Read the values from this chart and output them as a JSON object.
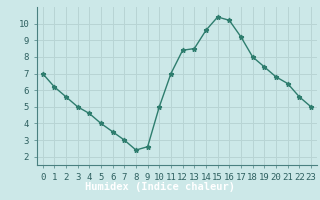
{
  "x": [
    0,
    1,
    2,
    3,
    4,
    5,
    6,
    7,
    8,
    9,
    10,
    11,
    12,
    13,
    14,
    15,
    16,
    17,
    18,
    19,
    20,
    21,
    22,
    23
  ],
  "y": [
    7.0,
    6.2,
    5.6,
    5.0,
    4.6,
    4.0,
    3.5,
    3.0,
    2.4,
    2.6,
    5.0,
    7.0,
    8.4,
    8.5,
    9.6,
    10.4,
    10.2,
    9.2,
    8.0,
    7.4,
    6.8,
    6.4,
    5.6,
    5.0
  ],
  "line_color": "#2e7d6e",
  "marker": "*",
  "marker_size": 3.5,
  "bg_color": "#cce8e8",
  "grid_color": "#b8d4d4",
  "xlabel": "Humidex (Indice chaleur)",
  "xlabel_fontsize": 7.5,
  "xlim": [
    -0.5,
    23.5
  ],
  "ylim": [
    1.5,
    11.0
  ],
  "yticks": [
    2,
    3,
    4,
    5,
    6,
    7,
    8,
    9,
    10
  ],
  "xticks": [
    0,
    1,
    2,
    3,
    4,
    5,
    6,
    7,
    8,
    9,
    10,
    11,
    12,
    13,
    14,
    15,
    16,
    17,
    18,
    19,
    20,
    21,
    22,
    23
  ],
  "tick_label_fontsize": 6.5,
  "linewidth": 1.0,
  "bottom_bar_color": "#2e6060",
  "axis_color": "#4a8080"
}
